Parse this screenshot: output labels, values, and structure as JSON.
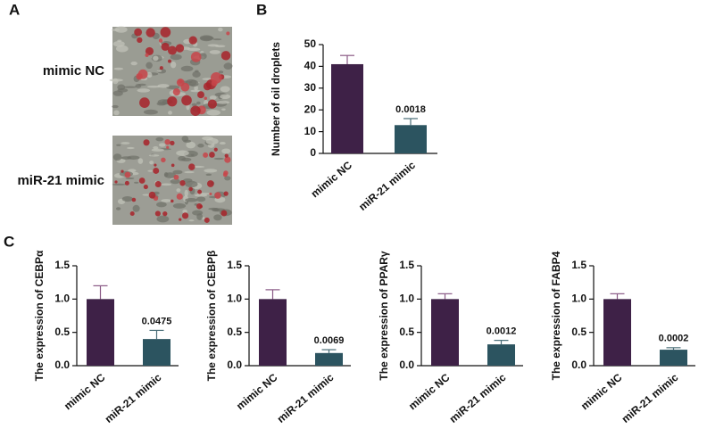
{
  "panels": [
    "A",
    "B",
    "C"
  ],
  "images": [
    {
      "label": "mimic NC"
    },
    {
      "label": "miR-21 mimic"
    }
  ],
  "chart_data": [
    {
      "type": "bar",
      "ylabel": "Number of oil droplets",
      "categories": [
        "mimic NC",
        "miR-21 mimic"
      ],
      "values": [
        41,
        13
      ],
      "errors": [
        4,
        3
      ],
      "colors": [
        "#3e2147",
        "#2c5460"
      ],
      "annotation": "0.0018",
      "ylim": [
        0,
        50
      ],
      "yticks": [
        0,
        10,
        20,
        30,
        40,
        50
      ]
    },
    {
      "type": "bar",
      "ylabel": "The expression of CEBPα",
      "categories": [
        "mimic NC",
        "miR-21 mimic"
      ],
      "values": [
        1.0,
        0.4
      ],
      "errors": [
        0.2,
        0.13
      ],
      "colors": [
        "#3e2147",
        "#2c5460"
      ],
      "annotation": "0.0475",
      "ylim": [
        0,
        1.5
      ],
      "yticks": [
        {
          "value": 0,
          "label": "0.0"
        },
        0.5,
        {
          "value": 1,
          "label": "1.0"
        },
        1.5
      ]
    },
    {
      "type": "bar",
      "ylabel": "The expression of CEBPβ",
      "categories": [
        "mimic NC",
        "miR-21 mimic"
      ],
      "values": [
        1.0,
        0.19
      ],
      "errors": [
        0.14,
        0.05
      ],
      "colors": [
        "#3e2147",
        "#2c5460"
      ],
      "annotation": "0.0069",
      "ylim": [
        0,
        1.5
      ],
      "yticks": [
        {
          "value": 0,
          "label": "0.0"
        },
        0.5,
        {
          "value": 1,
          "label": "1.0"
        },
        1.5
      ]
    },
    {
      "type": "bar",
      "ylabel": "The expression of PPARγ",
      "categories": [
        "mimic NC",
        "miR-21 mimic"
      ],
      "values": [
        1.0,
        0.32
      ],
      "errors": [
        0.08,
        0.06
      ],
      "colors": [
        "#3e2147",
        "#2c5460"
      ],
      "annotation": "0.0012",
      "ylim": [
        0,
        1.5
      ],
      "yticks": [
        {
          "value": 0,
          "label": "0.0"
        },
        0.5,
        {
          "value": 1,
          "label": "1.0"
        },
        1.5
      ]
    },
    {
      "type": "bar",
      "ylabel": "The expression of FABP4",
      "categories": [
        "mimic NC",
        "miR-21 mimic"
      ],
      "values": [
        1.0,
        0.24
      ],
      "errors": [
        0.08,
        0.03
      ],
      "colors": [
        "#3e2147",
        "#2c5460"
      ],
      "annotation": "0.0002",
      "ylim": [
        0,
        1.5
      ],
      "yticks": [
        {
          "value": 0,
          "label": "0.0"
        },
        0.5,
        {
          "value": 1,
          "label": "1.0"
        },
        1.5
      ]
    }
  ]
}
